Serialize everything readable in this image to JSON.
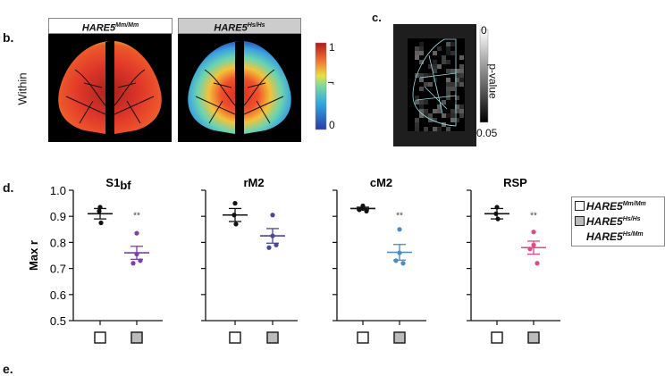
{
  "panel_b": {
    "label": "b.",
    "row_label": "Within",
    "headers": [
      {
        "base": "HARE5",
        "sup": "Mm/Mm",
        "fill": "#ffffff"
      },
      {
        "base": "HARE5",
        "sup": "Hs/Hs",
        "fill": "#cccccc"
      }
    ],
    "colorbar": {
      "max_label": "1",
      "min_label": "0",
      "title": "r",
      "colormap": "jet"
    }
  },
  "panel_c": {
    "label": "c.",
    "colorbar": {
      "top_label": "0",
      "bottom_label": "0.05",
      "title": "p-value",
      "colormap": "grayscale"
    }
  },
  "panel_d": {
    "label": "d.",
    "legend": [
      {
        "base": "HARE5",
        "sup": "Mm/Mm",
        "fill": "#ffffff"
      },
      {
        "base": "HARE5",
        "sup": "Hs/Hs",
        "fill": "#bbbbbb"
      },
      {
        "base": "HARE5",
        "sup": "Hs/Mm",
        "fill": null
      }
    ]
  },
  "panel_e": {
    "label": "e."
  },
  "chart_data": [
    {
      "type": "scatter",
      "title": "S1",
      "title_sub": "bf",
      "ylabel": "Max r",
      "ylim": [
        0.5,
        1.0
      ],
      "yticks": [
        "0.5",
        "0.6",
        "0.7",
        "0.8",
        "0.9",
        "1.0"
      ],
      "show_tick_labels": true,
      "significance": "**",
      "hs_color": "#7b3fae",
      "groups": [
        {
          "name": "HARE5 Mm/Mm",
          "points": [
            0.935,
            0.92,
            0.875
          ],
          "mean": 0.91,
          "sem": 0.02
        },
        {
          "name": "HARE5 Hs/Hs",
          "points": [
            0.835,
            0.755,
            0.72,
            0.73
          ],
          "mean": 0.76,
          "sem": 0.025
        }
      ]
    },
    {
      "type": "scatter",
      "title": "rM2",
      "title_sub": "",
      "ylim": [
        0.5,
        1.0
      ],
      "significance": "",
      "hs_color": "#4b4899",
      "groups": [
        {
          "name": "HARE5 Mm/Mm",
          "points": [
            0.95,
            0.905,
            0.87
          ],
          "mean": 0.905,
          "sem": 0.025
        },
        {
          "name": "HARE5 Hs/Hs",
          "points": [
            0.905,
            0.825,
            0.78,
            0.79
          ],
          "mean": 0.825,
          "sem": 0.028
        }
      ]
    },
    {
      "type": "scatter",
      "title": "cM2",
      "title_sub": "",
      "ylim": [
        0.5,
        1.0
      ],
      "significance": "**",
      "hs_color": "#4a8cc4",
      "groups": [
        {
          "name": "HARE5 Mm/Mm",
          "points": [
            0.94,
            0.93,
            0.925,
            0.92
          ],
          "mean": 0.93,
          "sem": 0.005
        },
        {
          "name": "HARE5 Hs/Hs",
          "points": [
            0.85,
            0.76,
            0.73,
            0.72
          ],
          "mean": 0.762,
          "sem": 0.03
        }
      ]
    },
    {
      "type": "scatter",
      "title": "RSP",
      "title_sub": "",
      "ylim": [
        0.5,
        1.0
      ],
      "significance": "**",
      "hs_color": "#e0488a",
      "groups": [
        {
          "name": "HARE5 Mm/Mm",
          "points": [
            0.935,
            0.91,
            0.89
          ],
          "mean": 0.91,
          "sem": 0.02
        },
        {
          "name": "HARE5 Hs/Hs",
          "points": [
            0.84,
            0.79,
            0.775,
            0.72
          ],
          "mean": 0.78,
          "sem": 0.025
        }
      ]
    }
  ]
}
